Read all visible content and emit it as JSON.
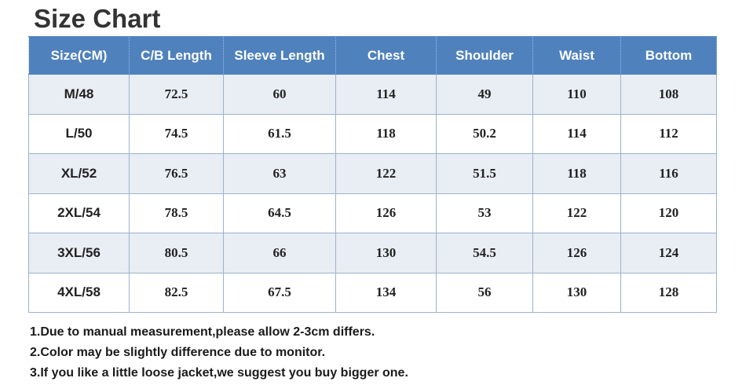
{
  "title": "Size Chart",
  "table": {
    "headers": [
      "Size(CM)",
      "C/B Length",
      "Sleeve Length",
      "Chest",
      "Shoulder",
      "Waist",
      "Bottom"
    ],
    "rows": [
      [
        "M/48",
        "72.5",
        "60",
        "114",
        "49",
        "110",
        "108"
      ],
      [
        "L/50",
        "74.5",
        "61.5",
        "118",
        "50.2",
        "114",
        "112"
      ],
      [
        "XL/52",
        "76.5",
        "63",
        "122",
        "51.5",
        "118",
        "116"
      ],
      [
        "2XL/54",
        "78.5",
        "64.5",
        "126",
        "53",
        "122",
        "120"
      ],
      [
        "3XL/56",
        "80.5",
        "66",
        "130",
        "54.5",
        "126",
        "124"
      ],
      [
        "4XL/58",
        "82.5",
        "67.5",
        "134",
        "56",
        "130",
        "128"
      ]
    ]
  },
  "notes": [
    "1.Due to manual measurement,please allow 2-3cm differs.",
    "2.Color may be slightly difference due to monitor.",
    "3.If you like a little loose jacket,we suggest you buy bigger one."
  ],
  "colors": {
    "header_bg": "#4f81bd",
    "header_text": "#ffffff",
    "row_alt_bg": "#e9edf4",
    "title_text": "#333333"
  }
}
